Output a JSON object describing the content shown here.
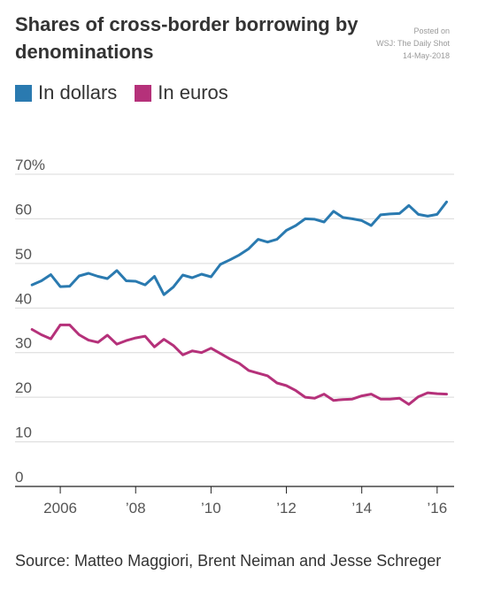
{
  "title": "Shares of cross-border borrowing by denominations",
  "posted": {
    "line1": "Posted on",
    "line2": "WSJ: The Daily Shot",
    "line3": "14-May-2018"
  },
  "legend": [
    {
      "label": "In dollars",
      "color": "#2a7ab0"
    },
    {
      "label": "In euros",
      "color": "#b5317a"
    }
  ],
  "source": "Source: Matteo Maggiori, Brent Neiman and Jesse Schreger",
  "chart_data": {
    "type": "line",
    "title": "Shares of cross-border borrowing by denominations",
    "xlabel": "",
    "ylabel": "",
    "xlim": [
      2004.8,
      2016.45
    ],
    "ylim": [
      0,
      70
    ],
    "yticks": [
      0,
      10,
      20,
      30,
      40,
      50,
      60,
      70
    ],
    "ytick_labels": [
      "0",
      "10",
      "20",
      "30",
      "40",
      "50",
      "60",
      "70%"
    ],
    "xticks": [
      2006,
      2008,
      2010,
      2012,
      2014,
      2016
    ],
    "xtick_labels": [
      "2006",
      "’08",
      "’10",
      "’12",
      "’14",
      "’16"
    ],
    "grid": true,
    "legend_position": "top-left",
    "series": [
      {
        "name": "In dollars",
        "color": "#2a7ab0",
        "x": [
          2005.25,
          2005.5,
          2005.75,
          2006.0,
          2006.25,
          2006.5,
          2006.75,
          2007.0,
          2007.25,
          2007.5,
          2007.75,
          2008.0,
          2008.25,
          2008.5,
          2008.75,
          2009.0,
          2009.25,
          2009.5,
          2009.75,
          2010.0,
          2010.25,
          2010.5,
          2010.75,
          2011.0,
          2011.25,
          2011.5,
          2011.75,
          2012.0,
          2012.25,
          2012.5,
          2012.75,
          2013.0,
          2013.25,
          2013.5,
          2013.75,
          2014.0,
          2014.25,
          2014.5,
          2014.75,
          2015.0,
          2015.25,
          2015.5,
          2015.75,
          2016.0,
          2016.25
        ],
        "values": [
          45.2,
          46.1,
          47.5,
          44.8,
          44.9,
          47.2,
          47.8,
          47.1,
          46.6,
          48.4,
          46.1,
          46.0,
          45.2,
          47.1,
          43.0,
          44.7,
          47.4,
          46.8,
          47.6,
          47.0,
          49.8,
          50.8,
          51.9,
          53.3,
          55.4,
          54.8,
          55.4,
          57.4,
          58.5,
          60.0,
          59.9,
          59.3,
          61.7,
          60.3,
          60.0,
          59.6,
          58.5,
          60.9,
          61.1,
          61.2,
          63.0,
          61.0,
          60.6,
          61.0,
          63.8
        ]
      },
      {
        "name": "In euros",
        "color": "#b5317a",
        "x": [
          2005.25,
          2005.5,
          2005.75,
          2006.0,
          2006.25,
          2006.5,
          2006.75,
          2007.0,
          2007.25,
          2007.5,
          2007.75,
          2008.0,
          2008.25,
          2008.5,
          2008.75,
          2009.0,
          2009.25,
          2009.5,
          2009.75,
          2010.0,
          2010.25,
          2010.5,
          2010.75,
          2011.0,
          2011.25,
          2011.5,
          2011.75,
          2012.0,
          2012.25,
          2012.5,
          2012.75,
          2013.0,
          2013.25,
          2013.5,
          2013.75,
          2014.0,
          2014.25,
          2014.5,
          2014.75,
          2015.0,
          2015.25,
          2015.5,
          2015.75,
          2016.0,
          2016.25
        ],
        "values": [
          35.2,
          34.0,
          33.1,
          36.2,
          36.2,
          34.0,
          32.8,
          32.3,
          33.9,
          31.9,
          32.7,
          33.3,
          33.7,
          31.3,
          33.0,
          31.6,
          29.5,
          30.4,
          30.0,
          31.0,
          29.8,
          28.6,
          27.6,
          26.0,
          25.4,
          24.8,
          23.2,
          22.6,
          21.5,
          20.0,
          19.8,
          20.7,
          19.3,
          19.5,
          19.6,
          20.3,
          20.7,
          19.6,
          19.6,
          19.8,
          18.4,
          20.1,
          21.0,
          20.8,
          20.7
        ]
      }
    ]
  }
}
